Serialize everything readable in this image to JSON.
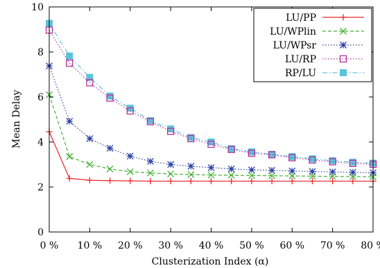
{
  "chart_data": {
    "type": "line",
    "title": "",
    "xlabel": "Clusterization Index (α)",
    "ylabel": "Mean Delay",
    "x": [
      0,
      5,
      10,
      15,
      20,
      25,
      30,
      35,
      40,
      45,
      50,
      55,
      60,
      65,
      70,
      75,
      80
    ],
    "xlim": [
      0,
      80
    ],
    "ylim": [
      0,
      10
    ],
    "x_ticks": [
      0,
      10,
      20,
      30,
      40,
      50,
      60,
      70,
      80
    ],
    "x_tick_labels": [
      "0 %",
      "10 %",
      "20 %",
      "30 %",
      "40 %",
      "50 %",
      "60 %",
      "70 %",
      "80 %"
    ],
    "y_ticks": [
      0,
      2,
      4,
      6,
      8,
      10
    ],
    "y_tick_labels": [
      "0",
      "2",
      "4",
      "6",
      "8",
      "10"
    ],
    "grid": false,
    "legend_position": "top-right",
    "series": [
      {
        "name": "LU/PP",
        "color": "#e8262b",
        "dash": "solid",
        "marker": "plus",
        "values": [
          4.45,
          2.38,
          2.3,
          2.28,
          2.27,
          2.26,
          2.26,
          2.26,
          2.26,
          2.26,
          2.26,
          2.26,
          2.26,
          2.26,
          2.26,
          2.26,
          2.26
        ]
      },
      {
        "name": "LU/WPlin",
        "color": "#45b035",
        "dash": "dashed",
        "marker": "cross",
        "values": [
          6.1,
          3.35,
          3.0,
          2.8,
          2.68,
          2.62,
          2.58,
          2.55,
          2.53,
          2.52,
          2.51,
          2.5,
          2.49,
          2.48,
          2.47,
          2.46,
          2.45
        ]
      },
      {
        "name": "LU/WPsr",
        "color": "#2a3fa6",
        "dash": "dotted",
        "marker": "star",
        "values": [
          7.38,
          4.92,
          4.15,
          3.72,
          3.37,
          3.14,
          3.0,
          2.92,
          2.86,
          2.8,
          2.76,
          2.74,
          2.71,
          2.69,
          2.67,
          2.65,
          2.63
        ]
      },
      {
        "name": "LU/RP",
        "color": "#b1309e",
        "dash": "dotted",
        "marker": "open-square",
        "values": [
          8.97,
          7.5,
          6.63,
          5.95,
          5.38,
          4.9,
          4.47,
          4.15,
          3.9,
          3.67,
          3.5,
          3.43,
          3.3,
          3.2,
          3.12,
          3.05,
          3.01
        ]
      },
      {
        "name": "RP/LU",
        "color": "#5ec3d9",
        "dash": "dashdot",
        "marker": "filled-square",
        "values": [
          9.27,
          7.82,
          6.87,
          6.04,
          5.5,
          4.95,
          4.58,
          4.2,
          4.0,
          3.7,
          3.56,
          3.45,
          3.35,
          3.25,
          3.17,
          3.1,
          3.06
        ]
      }
    ]
  }
}
